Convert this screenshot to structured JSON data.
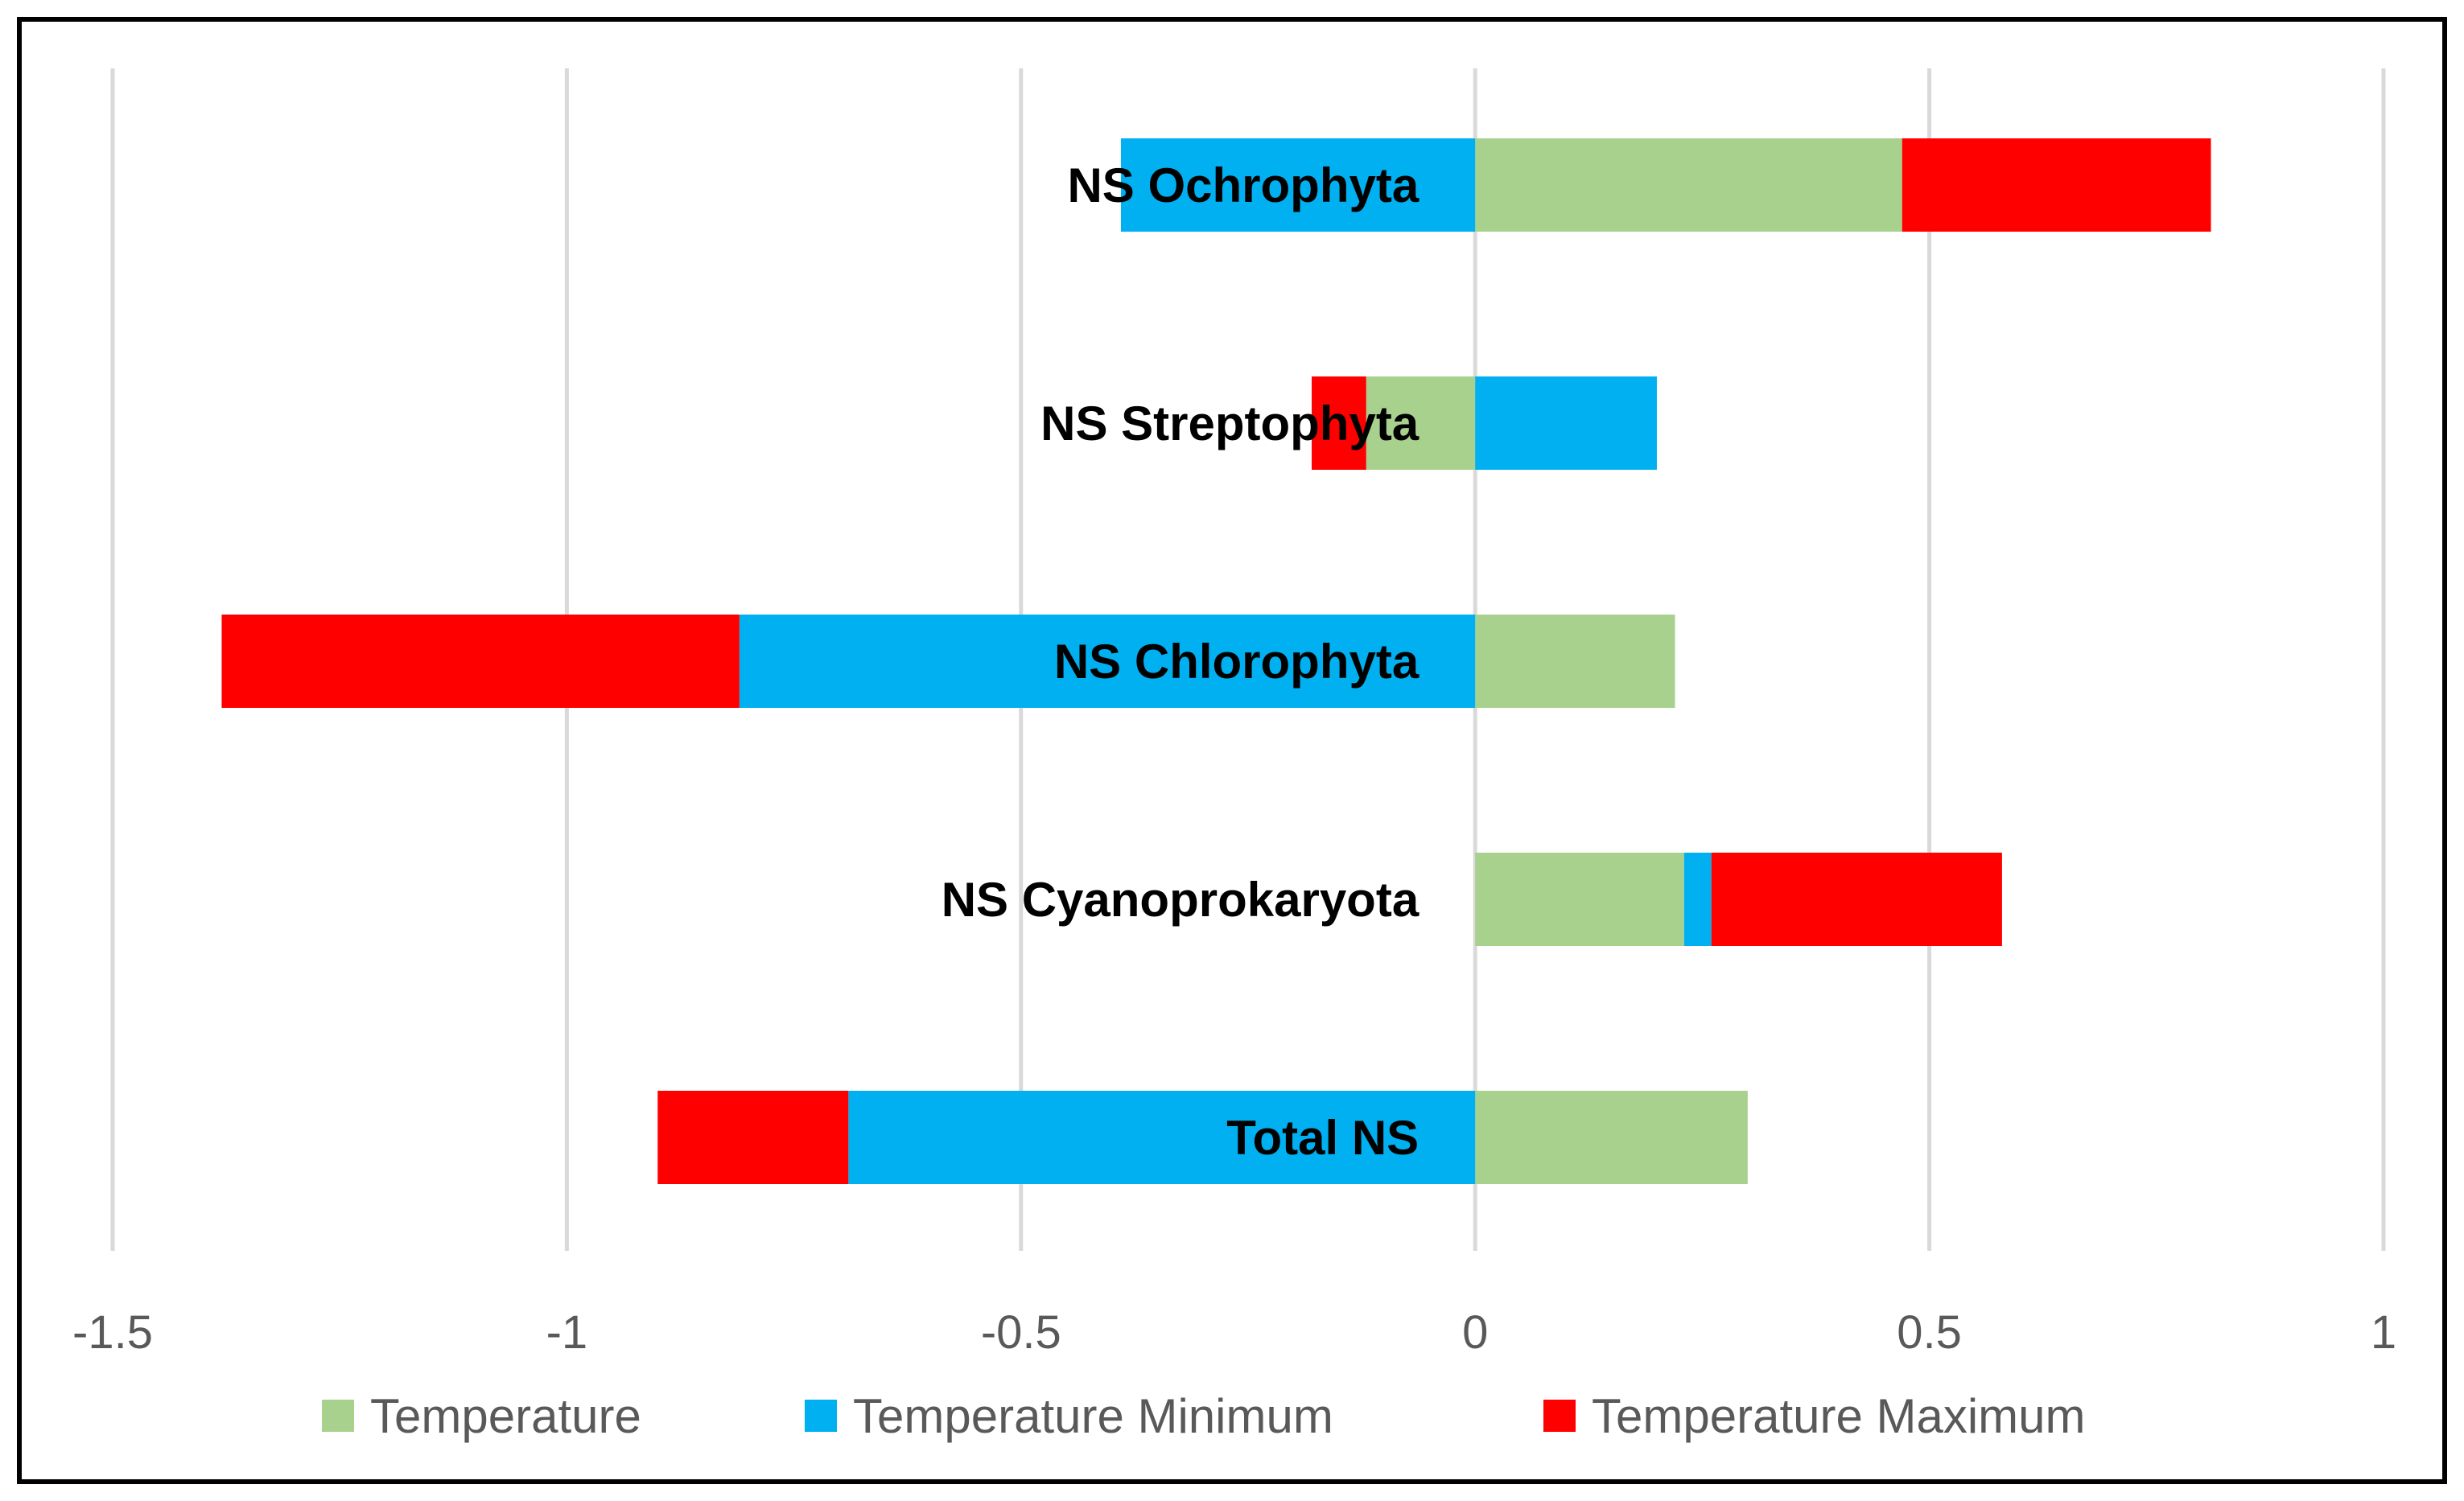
{
  "chart_data": {
    "type": "bar",
    "orientation": "horizontal",
    "stacked": true,
    "categories": [
      "NS Ochrophyta",
      "NS Streptophyta",
      "NS Chlorophyta",
      "NS Cyanoprokaryota",
      "Total NS"
    ],
    "series": [
      {
        "name": "Temperature",
        "color": "#a9d18e",
        "values": [
          0.47,
          -0.12,
          0.22,
          0.23,
          0.3
        ]
      },
      {
        "name": "Temperature Minimum",
        "color": "#00b0f0",
        "values": [
          -0.39,
          0.2,
          -0.81,
          0.03,
          -0.69
        ]
      },
      {
        "name": "Temperature Maximum",
        "color": "#ff0000",
        "values": [
          0.34,
          -0.06,
          -0.57,
          0.32,
          -0.21
        ]
      }
    ],
    "xlim": [
      -1.5,
      1
    ],
    "xticks": [
      -1.5,
      -1,
      -0.5,
      0,
      0.5,
      1
    ],
    "xtick_labels": [
      "-1.5",
      "-1",
      "-0.5",
      "0",
      "0.5",
      "1"
    ],
    "grid": true,
    "legend_position": "bottom",
    "title": "",
    "xlabel": "",
    "ylabel": ""
  }
}
